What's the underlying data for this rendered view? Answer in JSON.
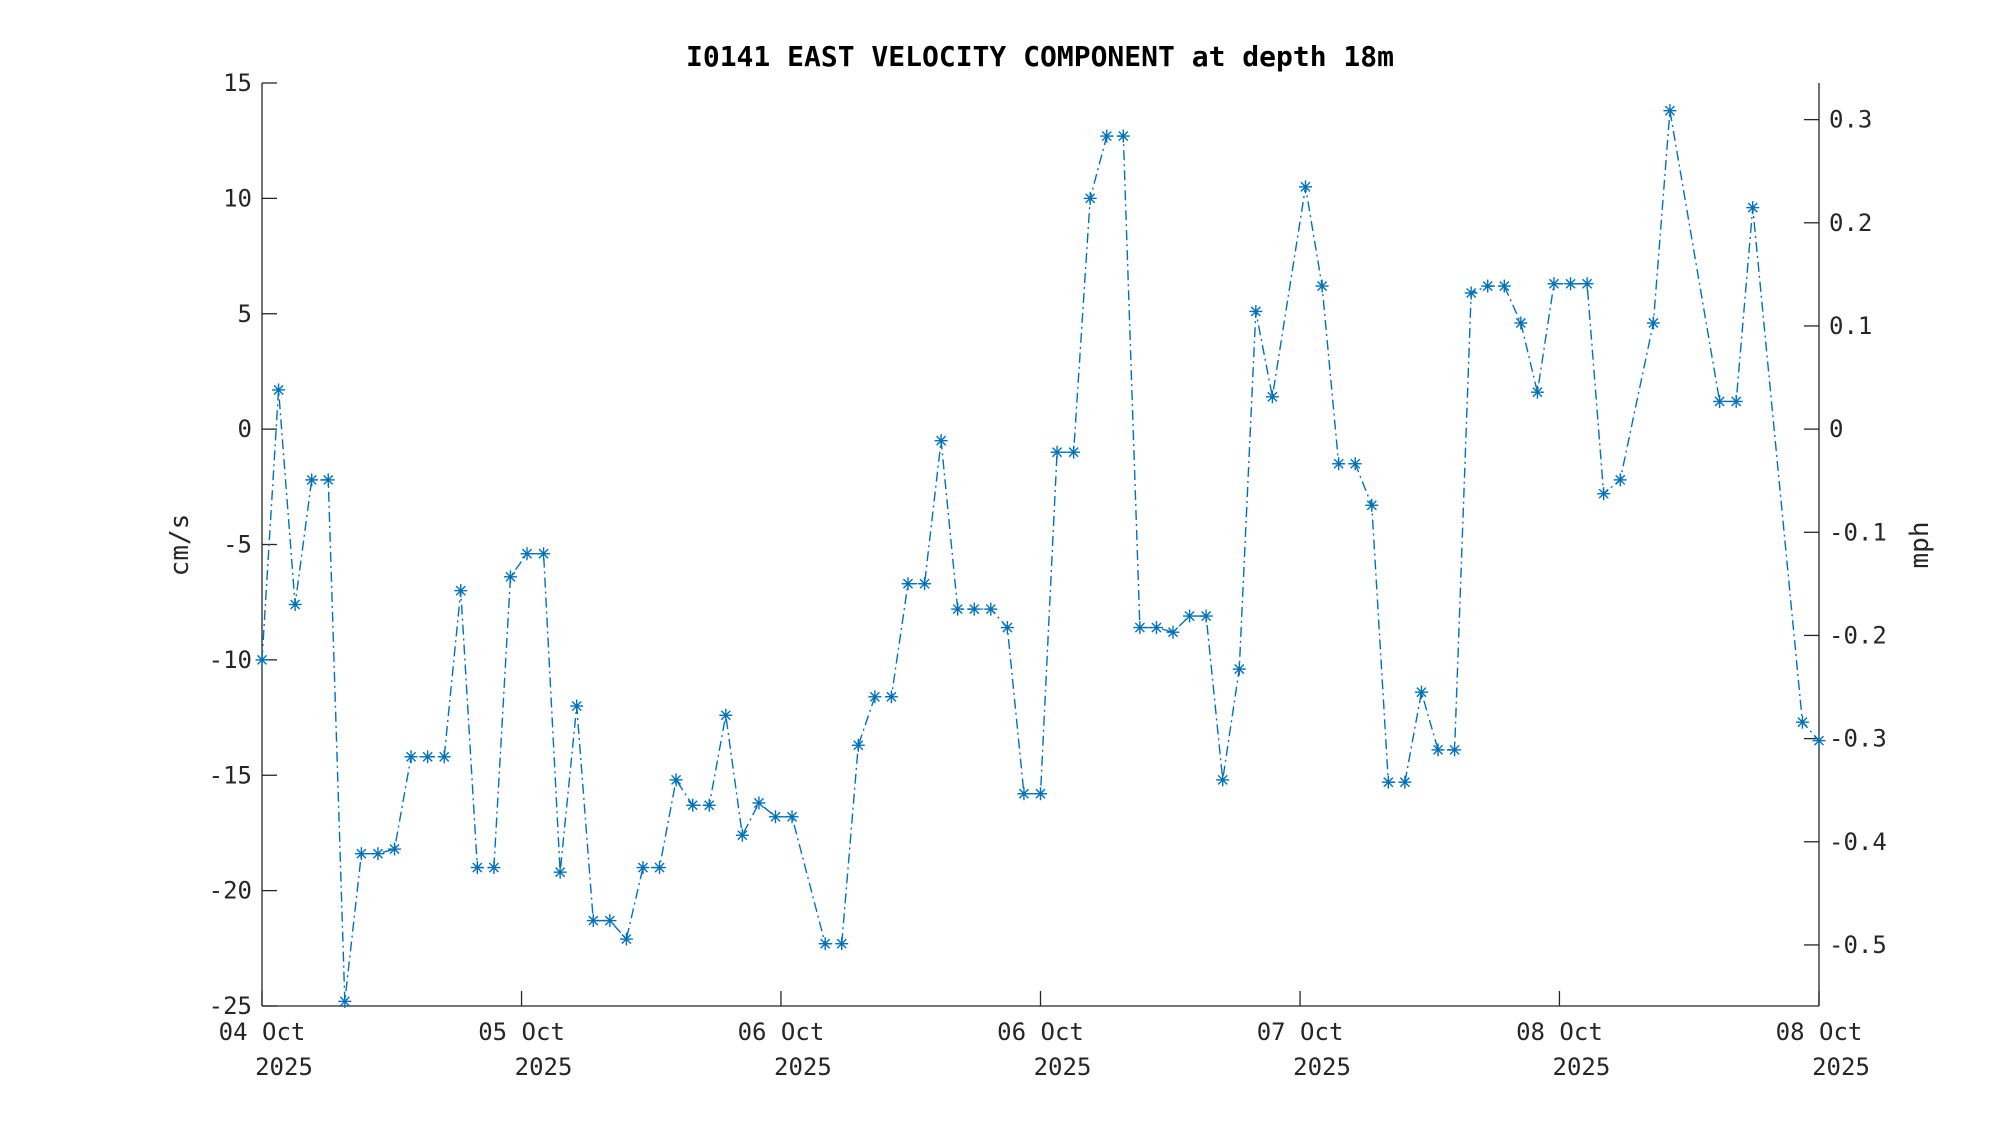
{
  "chart_data": {
    "type": "line",
    "title": "I0141 EAST VELOCITY COMPONENT at depth 18m",
    "xlabel": "",
    "ylabel": "cm/s",
    "ylabel_right": "mph",
    "ylim": [
      -25,
      15
    ],
    "ylim_right": [
      -0.5592,
      0.3355
    ],
    "yticks": [
      -25,
      -20,
      -15,
      -10,
      -5,
      0,
      5,
      10,
      15
    ],
    "yticks_right": [
      -0.5,
      -0.4,
      -0.3,
      -0.2,
      -0.1,
      0,
      0.1,
      0.2,
      0.3
    ],
    "yticks_right_labels": [
      "-0.5",
      "-0.4",
      "-0.3",
      "-0.2",
      "-0.1",
      "0",
      "0.1",
      "0.2",
      "0.3"
    ],
    "xlim": [
      0,
      94
    ],
    "xticks": [
      {
        "value": 0,
        "line1": "04 Oct",
        "line2": "2025"
      },
      {
        "value": 15.67,
        "line1": "05 Oct",
        "line2": "2025"
      },
      {
        "value": 31.33,
        "line1": "06 Oct",
        "line2": "2025"
      },
      {
        "value": 47,
        "line1": "06 Oct",
        "line2": "2025"
      },
      {
        "value": 62.67,
        "line1": "07 Oct",
        "line2": "2025"
      },
      {
        "value": 78.33,
        "line1": "08 Oct",
        "line2": "2025"
      },
      {
        "value": 94,
        "line1": "08 Oct",
        "line2": "2025"
      }
    ],
    "grid": false,
    "series": [
      {
        "name": "East velocity",
        "color": "#0072BD",
        "line_style": "dash-dot",
        "marker": "asterisk",
        "x": [
          0,
          1,
          2,
          3,
          4,
          5,
          6,
          7,
          8,
          9,
          10,
          11,
          12,
          13,
          14,
          15,
          16,
          17,
          18,
          19,
          20,
          21,
          22,
          23,
          24,
          25,
          26,
          27,
          28,
          29,
          30,
          31,
          32,
          34,
          35,
          36,
          37,
          38,
          39,
          40,
          41,
          42,
          43,
          44,
          45,
          46,
          47,
          48,
          49,
          50,
          51,
          52,
          53,
          54,
          55,
          56,
          57,
          58,
          59,
          60,
          61,
          63,
          64,
          65,
          66,
          67,
          68,
          69,
          70,
          71,
          72,
          73,
          74,
          75,
          76,
          77,
          78,
          79,
          80,
          81,
          82,
          84,
          85,
          88,
          89,
          90,
          93,
          94
        ],
        "values": [
          -10.0,
          1.7,
          -7.6,
          -2.2,
          -2.2,
          -24.8,
          -18.4,
          -18.4,
          -18.2,
          -14.2,
          -14.2,
          -14.2,
          -7.0,
          -19.0,
          -19.0,
          -6.4,
          -5.4,
          -5.4,
          -19.2,
          -12.0,
          -21.3,
          -21.3,
          -22.1,
          -19.0,
          -19.0,
          -15.2,
          -16.3,
          -16.3,
          -12.4,
          -17.6,
          -16.2,
          -16.8,
          -16.8,
          -22.3,
          -22.3,
          -13.7,
          -11.6,
          -11.6,
          -6.7,
          -6.7,
          -0.5,
          -7.8,
          -7.8,
          -7.8,
          -8.6,
          -15.8,
          -15.8,
          -1.0,
          -1.0,
          10.0,
          12.7,
          12.7,
          -8.6,
          -8.6,
          -8.8,
          -8.1,
          -8.1,
          -15.2,
          -10.4,
          5.1,
          1.4,
          10.5,
          6.2,
          -1.5,
          -1.5,
          -3.3,
          -15.3,
          -15.3,
          -11.4,
          -13.9,
          -13.9,
          5.9,
          6.2,
          6.2,
          4.6,
          1.6,
          6.3,
          6.3,
          6.3,
          -2.8,
          -2.2,
          4.6,
          13.8,
          1.2,
          1.2,
          9.6,
          -12.7,
          -13.5
        ]
      }
    ]
  }
}
